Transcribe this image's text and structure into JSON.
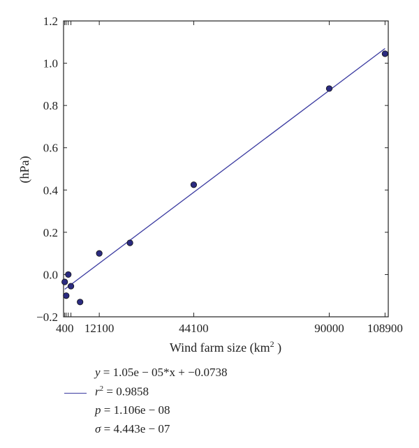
{
  "chart_data": {
    "type": "scatter",
    "xlabel": "Wind farm size (km",
    "xlabel_sup": "2",
    "xlabel_end": " )",
    "ylabel": "(hPa)",
    "xlim": [
      0,
      110000
    ],
    "ylim": [
      -0.2,
      1.2
    ],
    "x_ticks": [
      400,
      12100,
      44100,
      90000,
      108900
    ],
    "x_minor_ticks": [
      900,
      1600,
      2500
    ],
    "y_ticks": [
      -0.2,
      0.0,
      0.2,
      0.4,
      0.6,
      0.8,
      1.0,
      1.2
    ],
    "grid": false,
    "points": [
      {
        "x": 400,
        "y": -0.035
      },
      {
        "x": 900,
        "y": -0.1
      },
      {
        "x": 1600,
        "y": 0.0
      },
      {
        "x": 2500,
        "y": -0.055
      },
      {
        "x": 5600,
        "y": -0.13
      },
      {
        "x": 12100,
        "y": 0.1
      },
      {
        "x": 22500,
        "y": 0.15
      },
      {
        "x": 44100,
        "y": 0.425
      },
      {
        "x": 90000,
        "y": 0.88
      },
      {
        "x": 108900,
        "y": 1.045
      }
    ],
    "fit": {
      "slope": 1.05e-05,
      "intercept": -0.0738,
      "x_range": [
        400,
        108900
      ]
    },
    "colors": {
      "marker": "#2b2b80",
      "line": "#3a3aa0",
      "axis": "#222222"
    }
  },
  "legend": {
    "equation_y": "y",
    "equation_rest": " = 1.05e − 05*x + −0.0738",
    "r2_label": "r",
    "r2_sup": "2",
    "r2_rest": " = 0.9858",
    "p_label": "p",
    "p_rest": " = 1.106e − 08",
    "sigma_label": "σ",
    "sigma_rest": " = 4.443e − 07"
  }
}
